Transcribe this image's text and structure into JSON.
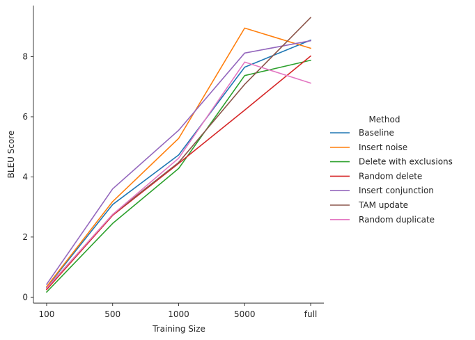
{
  "chart_data": {
    "type": "line",
    "xlabel": "Training Size",
    "ylabel": "BLEU Score",
    "categories": [
      "100",
      "500",
      "1000",
      "5000",
      "full"
    ],
    "yticks": [
      0,
      2,
      4,
      6,
      8
    ],
    "ylim": [
      -0.2,
      9.7
    ],
    "grid": false,
    "legend": {
      "title": "Method",
      "placement": "right"
    },
    "series": [
      {
        "name": "Baseline",
        "color": "#1f77b4",
        "values": [
          0.33,
          3.08,
          4.73,
          7.65,
          8.55
        ]
      },
      {
        "name": "Insert noise",
        "color": "#ff7f0e",
        "values": [
          0.35,
          3.18,
          5.28,
          8.95,
          8.28
        ]
      },
      {
        "name": "Delete with exclusions",
        "color": "#2ca02c",
        "values": [
          0.17,
          2.45,
          4.28,
          7.37,
          7.88
        ]
      },
      {
        "name": "Random delete",
        "color": "#d62728",
        "values": [
          0.25,
          2.72,
          4.45,
          6.22,
          8.02
        ]
      },
      {
        "name": "Insert conjunction",
        "color": "#9467bd",
        "values": [
          0.43,
          3.6,
          5.55,
          8.12,
          8.53
        ]
      },
      {
        "name": "TAM update",
        "color": "#8c564b",
        "values": [
          0.3,
          2.75,
          4.48,
          7.08,
          9.3
        ]
      },
      {
        "name": "Random duplicate",
        "color": "#e377c2",
        "values": [
          0.3,
          2.75,
          4.62,
          7.82,
          7.12
        ]
      }
    ]
  }
}
